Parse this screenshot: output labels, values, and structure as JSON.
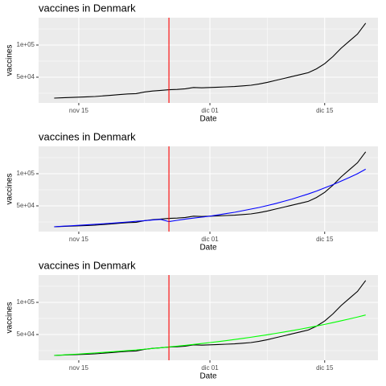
{
  "chart_data": [
    {
      "type": "line",
      "title": "vaccines in Denmark",
      "x_label": "Date",
      "y_label": "vaccines",
      "x": [
        12,
        13,
        14,
        15,
        16,
        17,
        18,
        19,
        20,
        21,
        22,
        23,
        24,
        25,
        26,
        27,
        28,
        29,
        30,
        31,
        32,
        33,
        34,
        35,
        36,
        37,
        38,
        39,
        40,
        41,
        42,
        43,
        44,
        45,
        46,
        47,
        48,
        49,
        50
      ],
      "series": [
        {
          "color": "#000000",
          "values": [
            17500,
            18000,
            18500,
            19000,
            19500,
            20000,
            21000,
            22000,
            23000,
            24000,
            24500,
            27000,
            28500,
            29500,
            30500,
            31000,
            32000,
            34000,
            33500,
            34000,
            34500,
            35000,
            35500,
            36500,
            37500,
            39500,
            42000,
            45000,
            48000,
            51000,
            54000,
            57000,
            63000,
            71000,
            82000,
            95000,
            106000,
            117000,
            134000
          ]
        }
      ],
      "vline": 26,
      "vline_color": "#ff0000",
      "xlim": [
        10.1,
        51.5
      ],
      "xticks": [
        {
          "value": 15,
          "label": "nov 15"
        },
        {
          "value": 31,
          "label": "dic 01"
        },
        {
          "value": 45,
          "label": "dic 15"
        }
      ],
      "ylim": [
        10000,
        142500
      ],
      "yticks": [
        {
          "value": 50000,
          "label": "5e+04"
        },
        {
          "value": 100000,
          "label": "1e+05"
        }
      ],
      "grid": true
    },
    {
      "type": "line",
      "title": "vaccines in Denmark",
      "x_label": "Date",
      "y_label": "vaccines",
      "x": [
        12,
        13,
        14,
        15,
        16,
        17,
        18,
        19,
        20,
        21,
        22,
        23,
        24,
        25,
        26,
        27,
        28,
        29,
        30,
        31,
        32,
        33,
        34,
        35,
        36,
        37,
        38,
        39,
        40,
        41,
        42,
        43,
        44,
        45,
        46,
        47,
        48,
        49,
        50
      ],
      "series": [
        {
          "color": "#000000",
          "values": [
            17500,
            18000,
            18500,
            19000,
            19500,
            20000,
            21000,
            22000,
            23000,
            24000,
            24500,
            27000,
            28500,
            29500,
            30500,
            31000,
            32000,
            34000,
            33500,
            34000,
            34500,
            35000,
            35500,
            36500,
            37500,
            39500,
            42000,
            45000,
            48000,
            51000,
            54000,
            57000,
            63000,
            71000,
            82000,
            95000,
            106000,
            117000,
            134000
          ]
        },
        {
          "color": "#0000ff",
          "values": [
            17500,
            18300,
            19000,
            19800,
            20500,
            21300,
            22200,
            23100,
            24000,
            25000,
            26000,
            27000,
            28000,
            29000,
            25500,
            27500,
            29500,
            31000,
            32500,
            34000,
            36000,
            38000,
            40000,
            42500,
            45000,
            47500,
            50500,
            53500,
            57000,
            60500,
            64500,
            68500,
            73000,
            78000,
            83000,
            88500,
            94000,
            100000,
            107000
          ]
        }
      ],
      "vline": 26,
      "vline_color": "#ff0000",
      "xlim": [
        10.1,
        51.5
      ],
      "xticks": [
        {
          "value": 15,
          "label": "nov 15"
        },
        {
          "value": 31,
          "label": "dic 01"
        },
        {
          "value": 45,
          "label": "dic 15"
        }
      ],
      "ylim": [
        10000,
        142500
      ],
      "yticks": [
        {
          "value": 50000,
          "label": "5e+04"
        },
        {
          "value": 100000,
          "label": "1e+05"
        }
      ],
      "grid": true
    },
    {
      "type": "line",
      "title": "vaccines in Denmark",
      "x_label": "Date",
      "y_label": "vaccines",
      "x": [
        12,
        13,
        14,
        15,
        16,
        17,
        18,
        19,
        20,
        21,
        22,
        23,
        24,
        25,
        26,
        27,
        28,
        29,
        30,
        31,
        32,
        33,
        34,
        35,
        36,
        37,
        38,
        39,
        40,
        41,
        42,
        43,
        44,
        45,
        46,
        47,
        48,
        49,
        50
      ],
      "series": [
        {
          "color": "#000000",
          "values": [
            17500,
            18000,
            18500,
            19000,
            19500,
            20000,
            21000,
            22000,
            23000,
            24000,
            24500,
            27000,
            28500,
            29500,
            30500,
            31000,
            32000,
            34000,
            33500,
            34000,
            34500,
            35000,
            35500,
            36500,
            37500,
            39500,
            42000,
            45000,
            48000,
            51000,
            54000,
            57000,
            63000,
            71000,
            82000,
            95000,
            106000,
            117000,
            134000
          ]
        },
        {
          "color": "#00ff00",
          "values": [
            17500,
            18200,
            18950,
            19700,
            20500,
            21400,
            22300,
            23200,
            24100,
            25100,
            26100,
            27200,
            28300,
            29500,
            30700,
            31900,
            33200,
            34600,
            36000,
            37500,
            39000,
            40600,
            42300,
            44000,
            45800,
            47700,
            49600,
            51700,
            53800,
            56000,
            58300,
            60700,
            63200,
            65800,
            68500,
            71300,
            74200,
            77200,
            80400
          ]
        }
      ],
      "vline": 26,
      "vline_color": "#ff0000",
      "xlim": [
        10.1,
        51.5
      ],
      "xticks": [
        {
          "value": 15,
          "label": "nov 15"
        },
        {
          "value": 31,
          "label": "dic 01"
        },
        {
          "value": 45,
          "label": "dic 15"
        }
      ],
      "ylim": [
        10000,
        142500
      ],
      "yticks": [
        {
          "value": 50000,
          "label": "5e+04"
        },
        {
          "value": 100000,
          "label": "1e+05"
        }
      ],
      "grid": true
    }
  ]
}
